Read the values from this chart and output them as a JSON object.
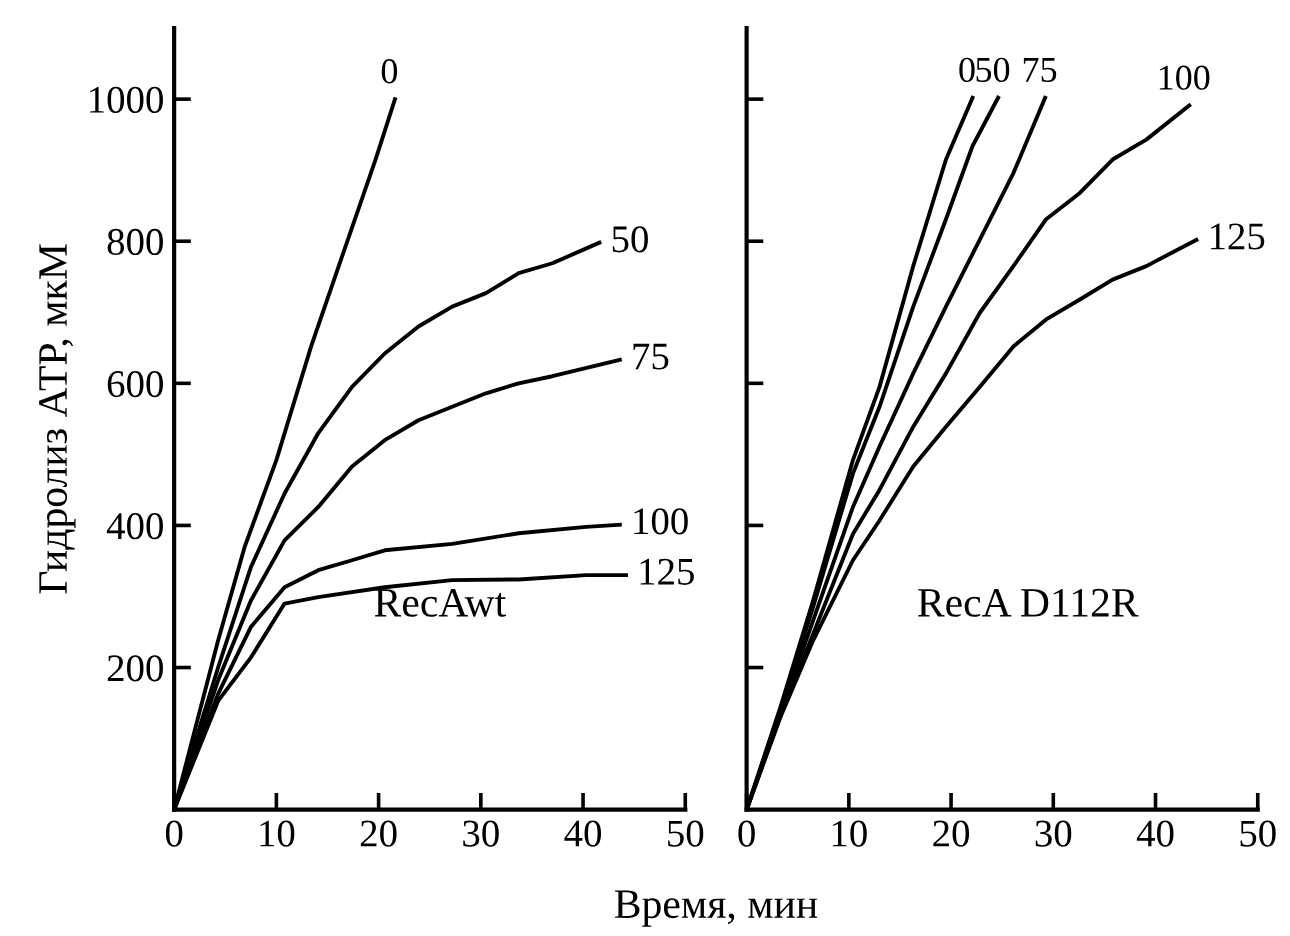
{
  "chart_data": [
    {
      "type": "line",
      "xlabel": "Время, мин",
      "ylabel": "Гидролиз АТР, мкМ",
      "annotations": [
        "RecAwt"
      ],
      "xlim": [
        0,
        50
      ],
      "ylim": [
        0,
        1100
      ],
      "xticks": [
        0,
        10,
        20,
        30,
        40,
        50
      ],
      "yticks": [
        200,
        400,
        600,
        800,
        1000
      ],
      "grid": false,
      "legend": "right",
      "marker": "none",
      "line_style": "solid",
      "series": [
        {
          "name": "0",
          "color": "#000000",
          "x": [
            0,
            4.3,
            6.9,
            10,
            13.4,
            16.1,
            19.7,
            21.6
          ],
          "values": [
            0,
            238,
            370,
            492,
            652,
            765,
            915,
            1000
          ]
        },
        {
          "name": "50",
          "color": "#000000",
          "x": [
            0,
            4.3,
            7.5,
            10.8,
            14.1,
            17.4,
            20.6,
            23.9,
            27.2,
            30.5,
            33.7,
            37,
            41.6
          ],
          "values": [
            0,
            200,
            341,
            445,
            530,
            595,
            642,
            680,
            708,
            727,
            755,
            769,
            798
          ]
        },
        {
          "name": "75",
          "color": "#000000",
          "x": [
            0,
            4.3,
            7.5,
            10.8,
            14.1,
            17.4,
            20.6,
            23.9,
            27.2,
            30.5,
            33.7,
            37,
            43.6
          ],
          "values": [
            0,
            182,
            294,
            379,
            426,
            483,
            520,
            548,
            567,
            586,
            600,
            610,
            633
          ]
        },
        {
          "name": "100",
          "color": "#000000",
          "x": [
            0,
            4.3,
            7.5,
            10.8,
            14.1,
            17.4,
            20.6,
            27.2,
            33.7,
            40.3,
            43.6
          ],
          "values": [
            0,
            163,
            257,
            313,
            337,
            351,
            365,
            374,
            389,
            398,
            401
          ]
        },
        {
          "name": "125",
          "color": "#000000",
          "x": [
            0,
            4.3,
            7.5,
            10.8,
            14.1,
            20.6,
            27.2,
            33.7,
            40.3,
            44.2
          ],
          "values": [
            0,
            153,
            214,
            290,
            299,
            313,
            323,
            324,
            330,
            330
          ]
        }
      ]
    },
    {
      "type": "line",
      "annotations": [
        "RecA D112R"
      ],
      "xlim": [
        0,
        50
      ],
      "ylim": [
        0,
        1100
      ],
      "xticks": [
        0,
        10,
        20,
        30,
        40,
        50
      ],
      "yticks": [
        {
          "value": 200,
          "label": null
        },
        {
          "value": 400,
          "label": null
        },
        {
          "value": 600,
          "label": null
        },
        {
          "value": 800,
          "label": null
        },
        {
          "value": 1000,
          "label": null
        }
      ],
      "tick_labels": "x",
      "grid": false,
      "legend": "right",
      "marker": "none",
      "line_style": "solid",
      "series": [
        {
          "name": "0",
          "color": "#000000",
          "x": [
            0,
            3.3,
            6.5,
            10.4,
            13,
            16.3,
            19.5,
            22.1
          ],
          "values": [
            0,
            144,
            294,
            492,
            595,
            765,
            915,
            1002
          ]
        },
        {
          "name": "50",
          "color": "#000000",
          "x": [
            0,
            3.3,
            6.5,
            10.4,
            13,
            16.3,
            19.5,
            22.1,
            24.6
          ],
          "values": [
            0,
            140,
            285,
            473,
            567,
            708,
            831,
            934,
            1002
          ]
        },
        {
          "name": "75",
          "color": "#000000",
          "x": [
            0,
            3.3,
            6.5,
            10.4,
            13,
            16.3,
            19.5,
            22.8,
            26.1,
            29.2
          ],
          "values": [
            0,
            135,
            266,
            426,
            511,
            614,
            708,
            802,
            896,
            1002
          ]
        },
        {
          "name": "100",
          "color": "#000000",
          "x": [
            0,
            3.3,
            6.5,
            10.4,
            13,
            16.3,
            19.5,
            22.8,
            26.1,
            29.3,
            32.6,
            35.8,
            39.1,
            43.3
          ],
          "values": [
            0,
            132,
            247,
            388,
            450,
            539,
            614,
            699,
            765,
            831,
            868,
            915,
            943,
            991
          ]
        },
        {
          "name": "125",
          "color": "#000000",
          "x": [
            0,
            3.3,
            6.5,
            10.4,
            13,
            16.3,
            19.5,
            22.8,
            26.1,
            29.3,
            32.6,
            35.8,
            39.1,
            44
          ],
          "values": [
            0,
            130,
            238,
            351,
            407,
            483,
            539,
            595,
            652,
            690,
            718,
            746,
            765,
            802
          ]
        }
      ]
    }
  ]
}
